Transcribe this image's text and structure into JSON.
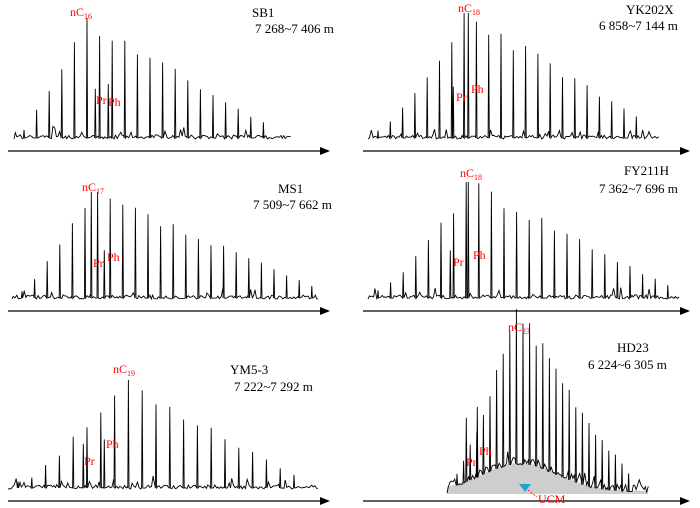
{
  "colors": {
    "trace": "#000000",
    "label": "#ff0000",
    "axis": "#000000",
    "ucm_marker": "#1fa3d6",
    "ucm_hump": "#bdbdbd"
  },
  "chart_data": [
    {
      "type": "line",
      "well": "SB1",
      "depth": "7 268~7 406 m",
      "main_peak": {
        "prefix": "nC",
        "subscript": "16"
      },
      "markers": [
        {
          "name": "Pr"
        },
        {
          "name": "Ph"
        }
      ]
    },
    {
      "type": "line",
      "well": "YK202X",
      "depth": "6 858~7 144 m",
      "main_peak": {
        "prefix": "nC",
        "subscript": "18"
      },
      "markers": [
        {
          "name": "Pr"
        },
        {
          "name": "Ph"
        }
      ]
    },
    {
      "type": "line",
      "well": "MS1",
      "depth": "7 509~7 662 m",
      "main_peak": {
        "prefix": "nC",
        "subscript": "17"
      },
      "markers": [
        {
          "name": "Pr"
        },
        {
          "name": "Ph"
        }
      ]
    },
    {
      "type": "line",
      "well": "FY211H",
      "depth": "7 362~7 696 m",
      "main_peak": {
        "prefix": "nC",
        "subscript": "18"
      },
      "markers": [
        {
          "name": "Pr"
        },
        {
          "name": "Ph"
        }
      ]
    },
    {
      "type": "line",
      "well": "YM5-3",
      "depth": "7 222~7 292 m",
      "main_peak": {
        "prefix": "nC",
        "subscript": "19"
      },
      "markers": [
        {
          "name": "Pr"
        },
        {
          "name": "Ph"
        }
      ]
    },
    {
      "type": "line",
      "well": "HD23",
      "depth": "6 224~6 305 m",
      "main_peak": {
        "prefix": "nC",
        "subscript": "23"
      },
      "markers": [
        {
          "name": "Pr"
        },
        {
          "name": "Ph"
        }
      ],
      "annotation": "UCM"
    }
  ]
}
